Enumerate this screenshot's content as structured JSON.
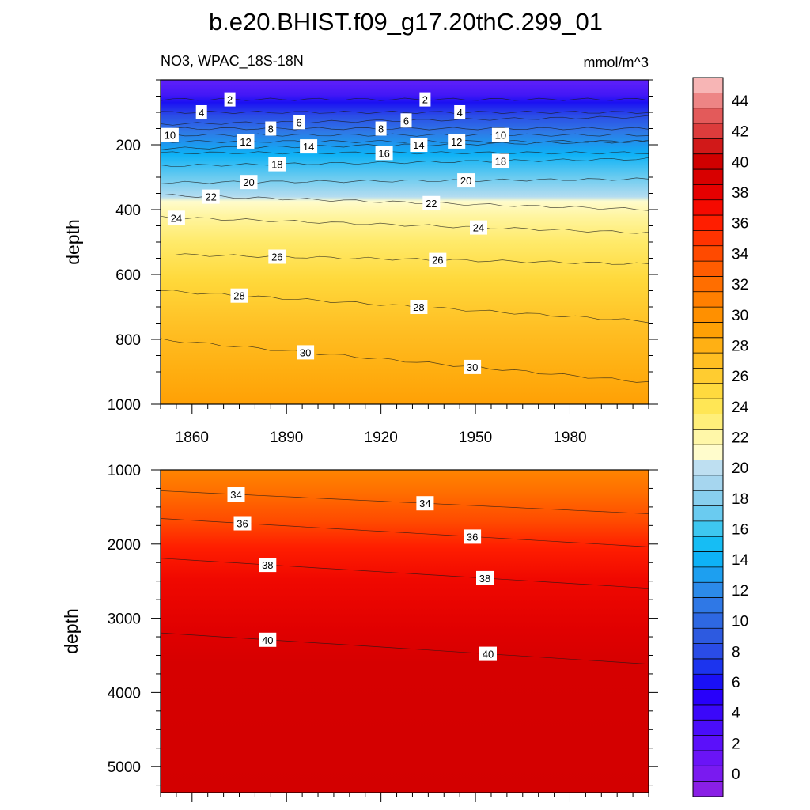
{
  "chart_data": {
    "type": "contour",
    "title": "b.e20.BHIST.f09_g17.20thC.299_01",
    "variable_label": "NO3, WPAC_18S-18N",
    "units": "mmol/m^3",
    "ylabel": "depth",
    "x_ticks": [
      "1860",
      "1890",
      "1920",
      "1950",
      "1980"
    ],
    "x_range": [
      1850,
      2005
    ],
    "panels": [
      {
        "name": "upper",
        "ylim": [
          0,
          1000
        ],
        "y_ticks": [
          "200",
          "400",
          "600",
          "800",
          "1000"
        ],
        "contour_labels": [
          {
            "text": "2",
            "year": 1872,
            "depth": 60
          },
          {
            "text": "2",
            "year": 1934,
            "depth": 60
          },
          {
            "text": "4",
            "year": 1863,
            "depth": 100
          },
          {
            "text": "4",
            "year": 1945,
            "depth": 100
          },
          {
            "text": "6",
            "year": 1894,
            "depth": 130
          },
          {
            "text": "6",
            "year": 1928,
            "depth": 125
          },
          {
            "text": "8",
            "year": 1885,
            "depth": 150
          },
          {
            "text": "8",
            "year": 1920,
            "depth": 150
          },
          {
            "text": "10",
            "year": 1853,
            "depth": 170
          },
          {
            "text": "10",
            "year": 1958,
            "depth": 170
          },
          {
            "text": "12",
            "year": 1877,
            "depth": 190
          },
          {
            "text": "12",
            "year": 1944,
            "depth": 190
          },
          {
            "text": "14",
            "year": 1897,
            "depth": 205
          },
          {
            "text": "14",
            "year": 1932,
            "depth": 200
          },
          {
            "text": "16",
            "year": 1921,
            "depth": 225
          },
          {
            "text": "18",
            "year": 1887,
            "depth": 260
          },
          {
            "text": "18",
            "year": 1958,
            "depth": 250
          },
          {
            "text": "20",
            "year": 1878,
            "depth": 315
          },
          {
            "text": "20",
            "year": 1947,
            "depth": 310
          },
          {
            "text": "22",
            "year": 1866,
            "depth": 360
          },
          {
            "text": "22",
            "year": 1936,
            "depth": 380
          },
          {
            "text": "24",
            "year": 1855,
            "depth": 425
          },
          {
            "text": "24",
            "year": 1951,
            "depth": 455
          },
          {
            "text": "26",
            "year": 1887,
            "depth": 545
          },
          {
            "text": "26",
            "year": 1938,
            "depth": 555
          },
          {
            "text": "28",
            "year": 1875,
            "depth": 665
          },
          {
            "text": "28",
            "year": 1932,
            "depth": 700
          },
          {
            "text": "30",
            "year": 1896,
            "depth": 840
          },
          {
            "text": "30",
            "year": 1949,
            "depth": 885
          }
        ]
      },
      {
        "name": "lower",
        "ylim": [
          1000,
          5350
        ],
        "y_ticks": [
          "1000",
          "2000",
          "3000",
          "4000",
          "5000"
        ],
        "contour_labels": [
          {
            "text": "34",
            "year": 1874,
            "depth": 1330
          },
          {
            "text": "34",
            "year": 1934,
            "depth": 1450
          },
          {
            "text": "36",
            "year": 1876,
            "depth": 1720
          },
          {
            "text": "36",
            "year": 1949,
            "depth": 1900
          },
          {
            "text": "38",
            "year": 1884,
            "depth": 2280
          },
          {
            "text": "38",
            "year": 1953,
            "depth": 2460
          },
          {
            "text": "40",
            "year": 1884,
            "depth": 3290
          },
          {
            "text": "40",
            "year": 1954,
            "depth": 3480
          }
        ]
      }
    ],
    "colorbar": {
      "min": -1,
      "max": 46,
      "step": 1,
      "tick_labels": [
        "0",
        "2",
        "4",
        "6",
        "8",
        "10",
        "12",
        "14",
        "16",
        "18",
        "20",
        "22",
        "24",
        "26",
        "28",
        "30",
        "32",
        "34",
        "36",
        "38",
        "40",
        "42",
        "44"
      ],
      "colors": [
        "#8a1fe6",
        "#7a1af0",
        "#6a14f7",
        "#5b10fa",
        "#4a0dfa",
        "#3b08fa",
        "#2800fa",
        "#1a10f5",
        "#1c34ee",
        "#2a4ce6",
        "#2d5ae0",
        "#2e68e2",
        "#2f78e6",
        "#2c8ae9",
        "#1d9ff0",
        "#0eb2f6",
        "#16bdf4",
        "#3ec7f0",
        "#6acbf0",
        "#88cfee",
        "#a6d6ef",
        "#bedff1",
        "#fffccc",
        "#fff7a8",
        "#ffef7a",
        "#ffe655",
        "#ffda3e",
        "#ffcc30",
        "#ffbe22",
        "#ffb014",
        "#ffa005",
        "#ff9000",
        "#ff7f00",
        "#ff6e00",
        "#ff5c00",
        "#ff4a00",
        "#ff3300",
        "#ff1e00",
        "#f50a00",
        "#e60000",
        "#d80000",
        "#d00000",
        "#d11919",
        "#dc3c3c",
        "#e35a5a",
        "#ed8585",
        "#f7b5b5"
      ]
    },
    "colors": {
      "shallow": "#6020fa",
      "mid": "#ffe655",
      "deep": "#d50000"
    }
  }
}
